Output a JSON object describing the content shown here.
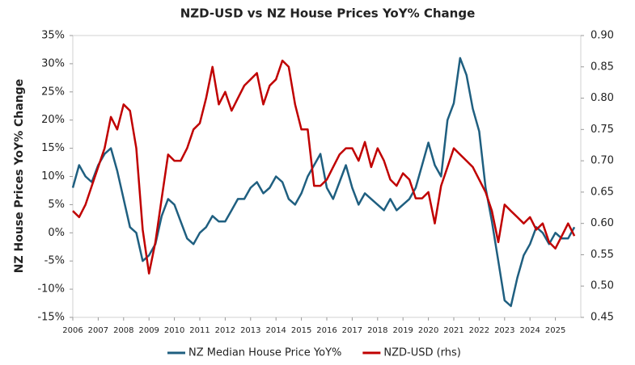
{
  "chart_data": {
    "type": "line",
    "title": "NZD-USD vs NZ House Prices YoY% Change",
    "y_label": "NZ House Prices YoY%  Change",
    "x": [
      2006,
      2006.25,
      2006.5,
      2006.75,
      2007,
      2007.25,
      2007.5,
      2007.75,
      2008,
      2008.25,
      2008.5,
      2008.75,
      2009,
      2009.25,
      2009.5,
      2009.75,
      2010,
      2010.25,
      2010.5,
      2010.75,
      2011,
      2011.25,
      2011.5,
      2011.75,
      2012,
      2012.25,
      2012.5,
      2012.75,
      2013,
      2013.25,
      2013.5,
      2013.75,
      2014,
      2014.25,
      2014.5,
      2014.75,
      2015,
      2015.25,
      2015.5,
      2015.75,
      2016,
      2016.25,
      2016.5,
      2016.75,
      2017,
      2017.25,
      2017.5,
      2017.75,
      2018,
      2018.25,
      2018.5,
      2018.75,
      2019,
      2019.25,
      2019.5,
      2019.75,
      2020,
      2020.25,
      2020.5,
      2020.75,
      2021,
      2021.25,
      2021.5,
      2021.75,
      2022,
      2022.25,
      2022.5,
      2022.75,
      2023,
      2023.25,
      2023.5,
      2023.75,
      2024,
      2024.25,
      2024.5,
      2024.75,
      2025,
      2025.25,
      2025.5,
      2025.75
    ],
    "series": [
      {
        "name": "NZ Median House Price YoY%",
        "color": "#1f5f80",
        "axis": "y",
        "values": [
          8,
          12,
          10,
          9,
          12,
          14,
          15,
          11,
          6,
          1,
          0,
          -5,
          -4,
          -2,
          3,
          6,
          5,
          2,
          -1,
          -2,
          0,
          1,
          3,
          2,
          2,
          4,
          6,
          6,
          8,
          9,
          7,
          8,
          10,
          9,
          6,
          5,
          7,
          10,
          12,
          14,
          8,
          6,
          9,
          12,
          8,
          5,
          7,
          6,
          5,
          4,
          6,
          4,
          5,
          6,
          8,
          12,
          16,
          12,
          10,
          20,
          23,
          31,
          28,
          22,
          18,
          8,
          2,
          -5,
          -12,
          -13,
          -8,
          -4,
          -2,
          1,
          0,
          -2,
          0,
          -1,
          -1,
          1
        ]
      },
      {
        "name": "NZD-USD (rhs)",
        "color": "#c00000",
        "axis": "y2",
        "values": [
          0.62,
          0.61,
          0.63,
          0.66,
          0.69,
          0.72,
          0.77,
          0.75,
          0.79,
          0.78,
          0.72,
          0.59,
          0.52,
          0.57,
          0.64,
          0.71,
          0.7,
          0.7,
          0.72,
          0.75,
          0.76,
          0.8,
          0.85,
          0.79,
          0.81,
          0.78,
          0.8,
          0.82,
          0.83,
          0.84,
          0.79,
          0.82,
          0.83,
          0.86,
          0.85,
          0.79,
          0.75,
          0.75,
          0.66,
          0.66,
          0.67,
          0.69,
          0.71,
          0.72,
          0.72,
          0.7,
          0.73,
          0.69,
          0.72,
          0.7,
          0.67,
          0.66,
          0.68,
          0.67,
          0.64,
          0.64,
          0.65,
          0.6,
          0.66,
          0.69,
          0.72,
          0.71,
          0.7,
          0.69,
          0.67,
          0.65,
          0.62,
          0.57,
          0.63,
          0.62,
          0.61,
          0.6,
          0.61,
          0.59,
          0.6,
          0.57,
          0.56,
          0.58,
          0.6,
          0.58
        ]
      }
    ],
    "xlim": [
      2006,
      2026
    ],
    "xticks": [
      2006,
      2007,
      2008,
      2009,
      2010,
      2011,
      2012,
      2013,
      2014,
      2015,
      2016,
      2017,
      2018,
      2019,
      2020,
      2021,
      2022,
      2023,
      2024,
      2025
    ],
    "ylim": [
      -15,
      35
    ],
    "yticks": [
      {
        "value": -15,
        "label": "-15%"
      },
      {
        "value": -10,
        "label": "-10%"
      },
      {
        "value": -5,
        "label": "-5%"
      },
      {
        "value": 0,
        "label": "0%"
      },
      {
        "value": 5,
        "label": "5%"
      },
      {
        "value": 10,
        "label": "10%"
      },
      {
        "value": 15,
        "label": "15%"
      },
      {
        "value": 20,
        "label": "20%"
      },
      {
        "value": 25,
        "label": "25%"
      },
      {
        "value": 30,
        "label": "30%"
      },
      {
        "value": 35,
        "label": "35%"
      }
    ],
    "y2lim": [
      0.45,
      0.9
    ],
    "y2ticks": [
      0.45,
      {
        "value": 0.5,
        "label": "0.50"
      },
      0.55,
      {
        "value": 0.6,
        "label": "0.60"
      },
      0.65,
      {
        "value": 0.7,
        "label": "0.70"
      },
      0.75,
      {
        "value": 0.8,
        "label": "0.80"
      },
      0.85,
      {
        "value": 0.9,
        "label": "0.90"
      }
    ],
    "legend": "bottom"
  }
}
